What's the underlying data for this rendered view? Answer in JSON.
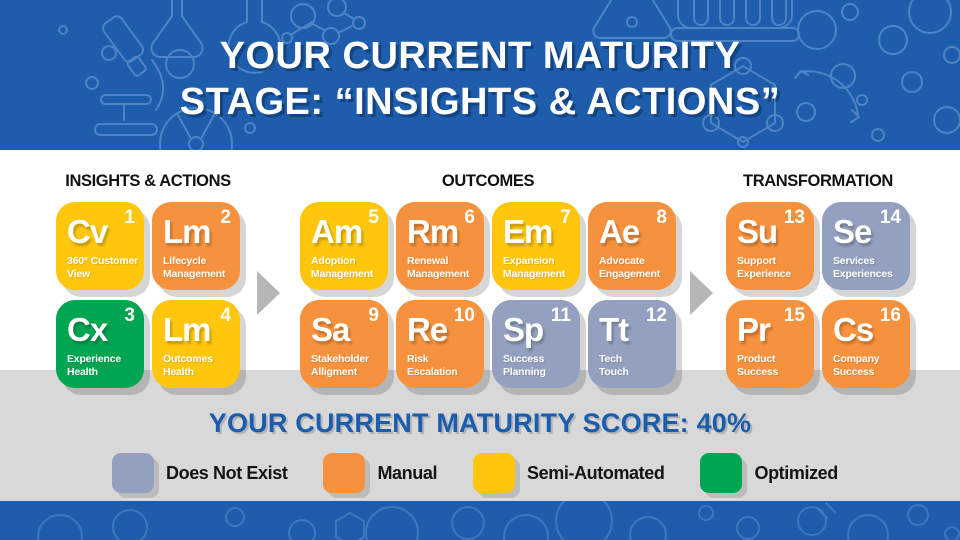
{
  "banner": {
    "title_line1": "YOUR CURRENT MATURITY",
    "title_line2": "STAGE: “INSIGHTS & ACTIONS”",
    "background_color": "#1d5dac",
    "doodle_color": "#7fa9dc"
  },
  "status_colors": {
    "does_not_exist": "#93a0bf",
    "manual": "#f6923d",
    "semi_automated": "#ffc60e",
    "optimized": "#00a551"
  },
  "groups": [
    {
      "label": "INSIGHTS & ACTIONS",
      "columns": 2,
      "tiles": [
        {
          "symbol": "Cv",
          "number": "1",
          "name": "360° Customer\nView",
          "status": "semi_automated"
        },
        {
          "symbol": "Lm",
          "number": "2",
          "name": "Lifecycle\nManagement",
          "status": "manual"
        },
        {
          "symbol": "Cx",
          "number": "3",
          "name": "Experience\nHealth",
          "status": "optimized"
        },
        {
          "symbol": "Lm",
          "number": "4",
          "name": "Outcomes\nHealth",
          "status": "semi_automated"
        }
      ]
    },
    {
      "label": "OUTCOMES",
      "columns": 4,
      "tiles": [
        {
          "symbol": "Am",
          "number": "5",
          "name": "Adoption\nManagement",
          "status": "semi_automated"
        },
        {
          "symbol": "Rm",
          "number": "6",
          "name": "Renewal\nManagement",
          "status": "manual"
        },
        {
          "symbol": "Em",
          "number": "7",
          "name": "Expansion\nManagement",
          "status": "semi_automated"
        },
        {
          "symbol": "Ae",
          "number": "8",
          "name": "Advocate\nEngagement",
          "status": "manual"
        },
        {
          "symbol": "Sa",
          "number": "9",
          "name": "Stakeholder\nAlligment",
          "status": "manual"
        },
        {
          "symbol": "Re",
          "number": "10",
          "name": "Risk\nEscalation",
          "status": "manual"
        },
        {
          "symbol": "Sp",
          "number": "11",
          "name": "Success\nPlanning",
          "status": "does_not_exist"
        },
        {
          "symbol": "Tt",
          "number": "12",
          "name": "Tech\nTouch",
          "status": "does_not_exist"
        }
      ]
    },
    {
      "label": "TRANSFORMATION",
      "columns": 2,
      "tiles": [
        {
          "symbol": "Su",
          "number": "13",
          "name": "Support\nExperience",
          "status": "manual"
        },
        {
          "symbol": "Se",
          "number": "14",
          "name": "Services\nExperiences",
          "status": "does_not_exist"
        },
        {
          "symbol": "Pr",
          "number": "15",
          "name": "Product\nSuccess",
          "status": "manual"
        },
        {
          "symbol": "Cs",
          "number": "16",
          "name": "Company\nSuccess",
          "status": "manual"
        }
      ]
    }
  ],
  "score_banner": {
    "text": "YOUR CURRENT MATURITY SCORE: 40%",
    "value": "40%",
    "text_color": "#1a5dae"
  },
  "legend": [
    {
      "label": "Does Not Exist",
      "status": "does_not_exist"
    },
    {
      "label": "Manual",
      "status": "manual"
    },
    {
      "label": "Semi-Automated",
      "status": "semi_automated"
    },
    {
      "label": "Optimized",
      "status": "optimized"
    }
  ]
}
